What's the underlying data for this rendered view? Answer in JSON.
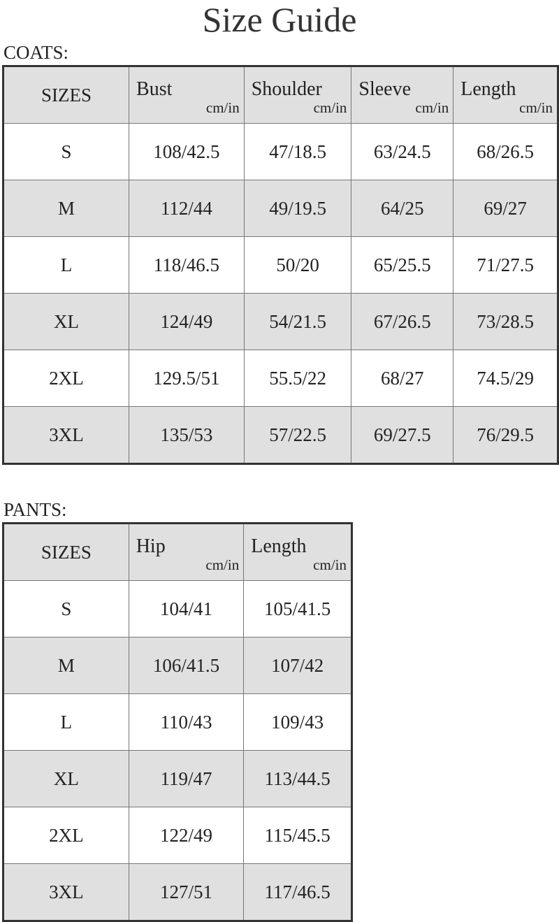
{
  "title": "Size Guide",
  "coats": {
    "label": "COATS:",
    "header": [
      "SIZES",
      "Bust",
      "Shoulder",
      "Sleeve",
      "Length"
    ],
    "unit": "cm/in",
    "rows": [
      [
        "S",
        "108/42.5",
        "47/18.5",
        "63/24.5",
        "68/26.5"
      ],
      [
        "M",
        "112/44",
        "49/19.5",
        "64/25",
        "69/27"
      ],
      [
        "L",
        "118/46.5",
        "50/20",
        "65/25.5",
        "71/27.5"
      ],
      [
        "XL",
        "124/49",
        "54/21.5",
        "67/26.5",
        "73/28.5"
      ],
      [
        "2XL",
        "129.5/51",
        "55.5/22",
        "68/27",
        "74.5/29"
      ],
      [
        "3XL",
        "135/53",
        "57/22.5",
        "69/27.5",
        "76/29.5"
      ]
    ]
  },
  "pants": {
    "label": "PANTS:",
    "header": [
      "SIZES",
      "Hip",
      "Length"
    ],
    "unit": "cm/in",
    "rows": [
      [
        "S",
        "104/41",
        "105/41.5"
      ],
      [
        "M",
        "106/41.5",
        "107/42"
      ],
      [
        "L",
        "110/43",
        "109/43"
      ],
      [
        "XL",
        "119/47",
        "113/44.5"
      ],
      [
        "2XL",
        "122/49",
        "115/45.5"
      ],
      [
        "3XL",
        "127/51",
        "117/46.5"
      ]
    ]
  },
  "colors": {
    "header_bg": "#e0e0e0",
    "stripe_bg": "#e0e0e0",
    "border": "#333333"
  }
}
